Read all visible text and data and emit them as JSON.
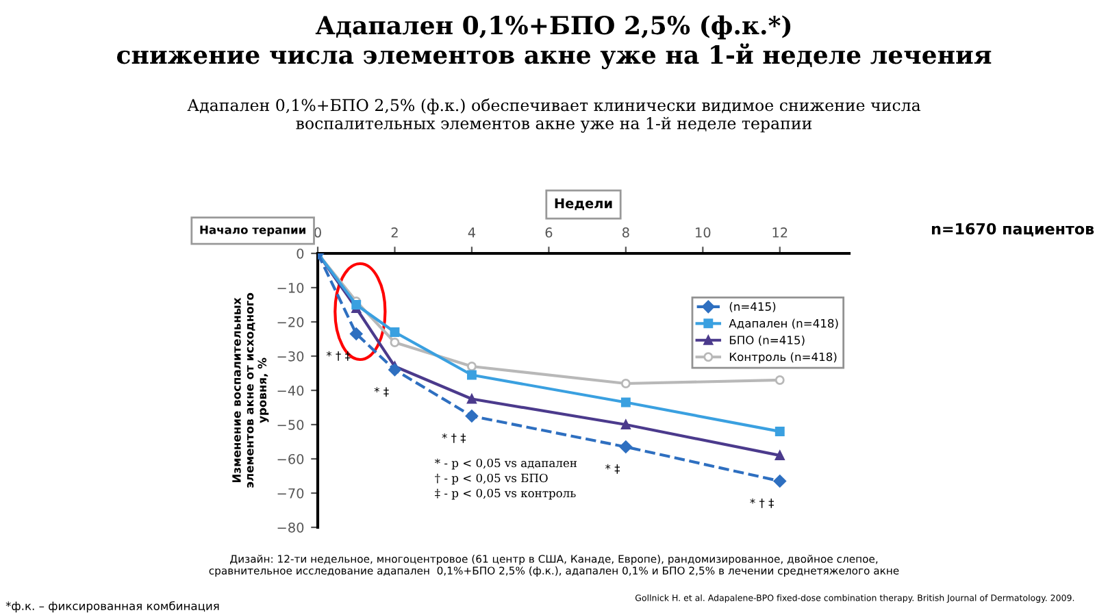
{
  "chart_data": {
    "type": "line",
    "title": "Адапален 0,1%+БПО 2,5% (ф.к.*)\nснижение числа элементов акне уже на 1-й неделе лечения",
    "subtitle": "Адапален 0,1%+БПО 2,5% (ф.к.) обеспечивает клинически видимое снижение числа\nвоспалительных элементов акне уже на 1-й неделе терапии",
    "xlabel": "Недели",
    "ylabel": "Изменение воспалительных\nэлементов акне от исходного\nуровня, %",
    "x": [
      0,
      1,
      2,
      4,
      8,
      12
    ],
    "series": [
      {
        "name": "(n=415)",
        "color": "#2e6fc0",
        "values": [
          0,
          -23.5,
          -34,
          -47.5,
          -56.5,
          -66.5
        ],
        "marker": "diamond",
        "line_style": "dashed"
      },
      {
        "name": "Адапален (n=418)",
        "color": "#3aa0e0",
        "values": [
          0,
          -15,
          -23,
          -35.5,
          -43.5,
          -52
        ],
        "marker": "square",
        "line_style": "solid"
      },
      {
        "name": "БПО (n=415)",
        "color": "#4b3a8c",
        "values": [
          0,
          -16,
          -33,
          -42.5,
          -50,
          -59
        ],
        "marker": "triangle",
        "line_style": "solid"
      },
      {
        "name": "Контроль (n=418)",
        "color": "#b8b8b8",
        "values": [
          0,
          -14,
          -26,
          -33,
          -38,
          -37
        ],
        "marker": "circle",
        "line_style": "solid"
      }
    ],
    "xlim": [
      0,
      13.8
    ],
    "xticks": [
      0,
      2,
      4,
      6,
      8,
      10,
      12
    ],
    "ylim": [
      -80,
      0
    ],
    "yticks": [
      -80,
      -70,
      -60,
      -50,
      -40,
      -30,
      -20,
      -10,
      0
    ],
    "grid": false,
    "legend": "top right",
    "annotations": [
      {
        "text": "Начало терапии",
        "x": 0,
        "y": 0
      },
      {
        "text": "* † ‡",
        "x": 1,
        "y": -23.5
      },
      {
        "text": "* ‡",
        "x": 2,
        "y": -34
      },
      {
        "text": "* † ‡",
        "x": 4,
        "y": -47.5
      },
      {
        "text": "* ‡",
        "x": 8,
        "y": -56.5
      },
      {
        "text": "* † ‡",
        "x": 12,
        "y": -66.5
      },
      "* - p < 0,05 vs адапален",
      "† - p < 0,05 vs БПО",
      "‡ - p < 0,05 vs контроль",
      "n=1670 пациентов",
      "Дизайн: 12-ти недельное, многоцентровое (61 центр в США, Канаде, Европе), рандомизированное, двойное слепое,\nсравнительное исследование адапален  0,1%+БПО 2,5% (ф.к.), адапален 0,1% и БПО 2,5% в лечении среднетяжелого акне",
      "Gollnick H. et al. Adapalene-BPO fixed-dose combination therapy. British Journal of Dermatology. 2009.",
      "*ф.к. – фиксированная комбинация"
    ]
  }
}
